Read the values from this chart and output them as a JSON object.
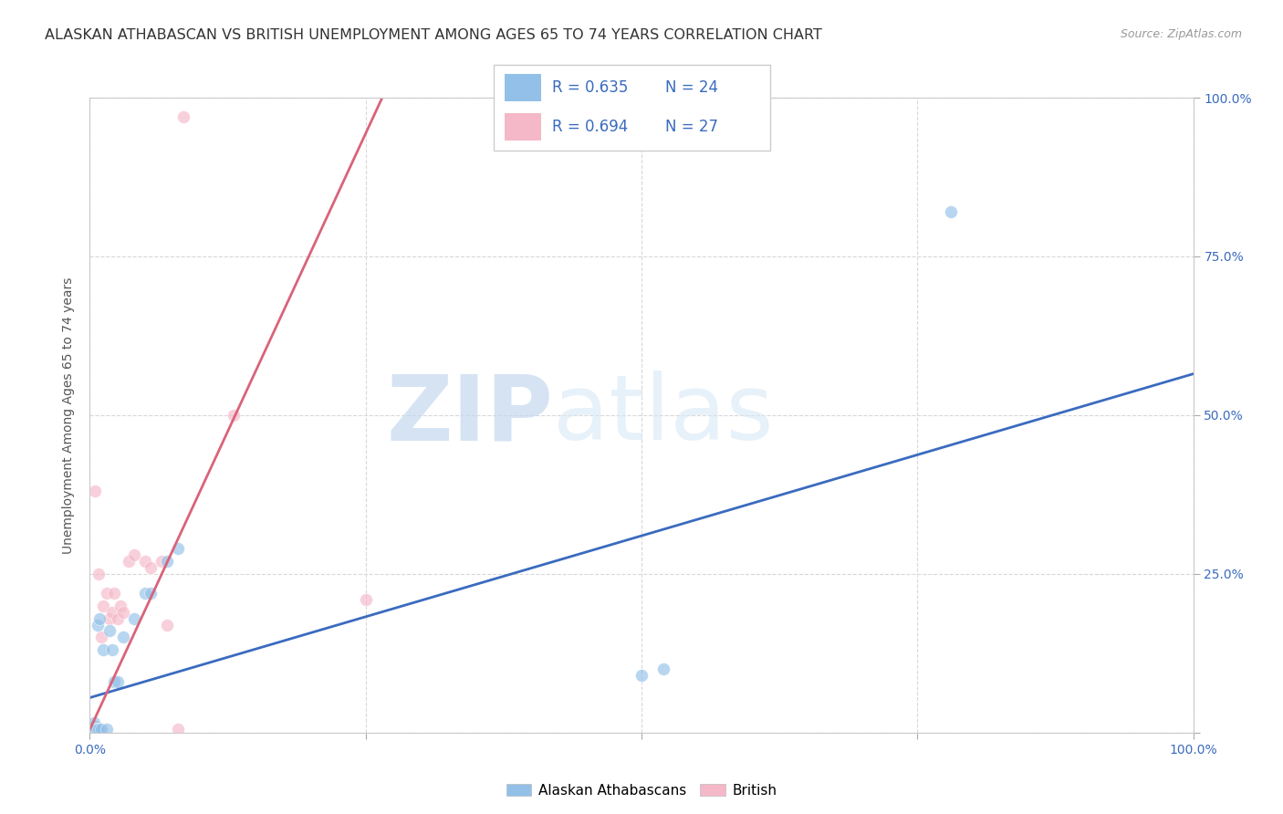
{
  "title": "ALASKAN ATHABASCAN VS BRITISH UNEMPLOYMENT AMONG AGES 65 TO 74 YEARS CORRELATION CHART",
  "source": "Source: ZipAtlas.com",
  "ylabel": "Unemployment Among Ages 65 to 74 years",
  "xlim": [
    0,
    1.0
  ],
  "ylim": [
    0,
    1.0
  ],
  "xticks": [
    0.0,
    0.25,
    0.5,
    0.75,
    1.0
  ],
  "xtick_labels": [
    "0.0%",
    "",
    "",
    "",
    "100.0%"
  ],
  "yticks": [
    0.0,
    0.25,
    0.5,
    0.75,
    1.0
  ],
  "ytick_labels": [
    "",
    "25.0%",
    "50.0%",
    "75.0%",
    "100.0%"
  ],
  "blue_color": "#92c0e8",
  "pink_color": "#f5b8c8",
  "blue_line_color": "#3a6bbf",
  "pink_line_color": "#d9637a",
  "watermark_zip": "ZIP",
  "watermark_atlas": "atlas",
  "legend_R_blue": "R = 0.635",
  "legend_N_blue": "N = 24",
  "legend_R_pink": "R = 0.694",
  "legend_N_pink": "N = 27",
  "legend_label_blue": "Alaskan Athabascans",
  "legend_label_pink": "British",
  "blue_x": [
    0.003,
    0.004,
    0.004,
    0.005,
    0.006,
    0.007,
    0.008,
    0.009,
    0.01,
    0.012,
    0.015,
    0.018,
    0.02,
    0.022,
    0.025,
    0.03,
    0.04,
    0.05,
    0.055,
    0.07,
    0.08,
    0.5,
    0.52,
    0.78
  ],
  "blue_y": [
    0.005,
    0.01,
    0.015,
    0.005,
    0.005,
    0.17,
    0.005,
    0.18,
    0.005,
    0.13,
    0.005,
    0.16,
    0.13,
    0.08,
    0.08,
    0.15,
    0.18,
    0.22,
    0.22,
    0.27,
    0.29,
    0.09,
    0.1,
    0.82
  ],
  "pink_x": [
    0.003,
    0.004,
    0.005,
    0.005,
    0.006,
    0.007,
    0.008,
    0.009,
    0.01,
    0.012,
    0.015,
    0.018,
    0.02,
    0.022,
    0.025,
    0.028,
    0.03,
    0.035,
    0.04,
    0.05,
    0.055,
    0.065,
    0.07,
    0.08,
    0.085,
    0.13,
    0.25
  ],
  "pink_y": [
    0.005,
    0.01,
    0.005,
    0.38,
    0.005,
    0.005,
    0.25,
    0.005,
    0.15,
    0.2,
    0.22,
    0.18,
    0.19,
    0.22,
    0.18,
    0.2,
    0.19,
    0.27,
    0.28,
    0.27,
    0.26,
    0.27,
    0.17,
    0.005,
    0.97,
    0.5,
    0.21
  ],
  "blue_line_x": [
    0.0,
    1.0
  ],
  "blue_line_y": [
    0.055,
    0.565
  ],
  "pink_line_x": [
    0.0,
    0.265
  ],
  "pink_line_y": [
    0.005,
    1.0
  ],
  "marker_size": 100,
  "marker_alpha": 0.65,
  "background_color": "#ffffff",
  "grid_color": "#d8d8d8",
  "title_color": "#333333",
  "tick_color": "#3a6bbf",
  "title_fontsize": 11.5,
  "label_fontsize": 10,
  "source_color": "#999999"
}
